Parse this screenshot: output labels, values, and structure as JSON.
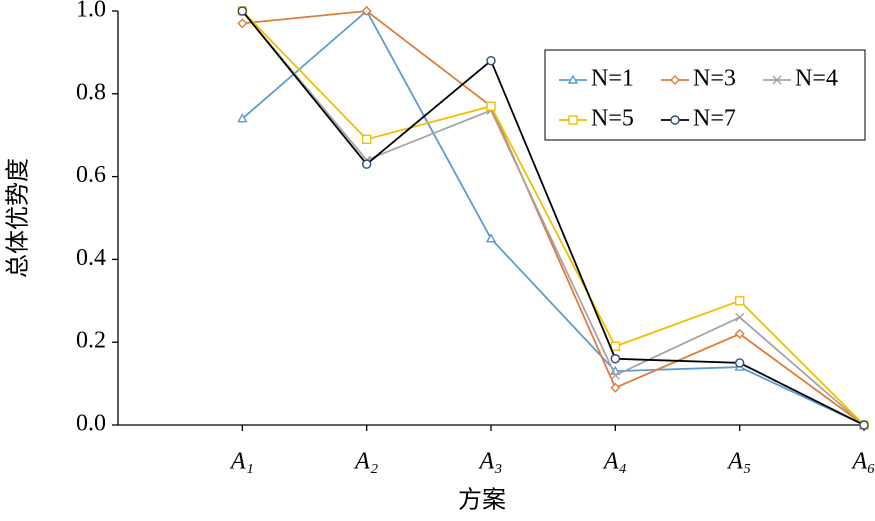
{
  "chart_data": {
    "type": "line",
    "x_label": "方案",
    "y_label": "总体优势度",
    "categories": [
      "A₁",
      "A₂",
      "A₃",
      "A₄",
      "A₅",
      "A₆"
    ],
    "series": [
      {
        "name": "N=1",
        "color": "#5b9bd5",
        "marker": "triangle",
        "values": [
          0.74,
          1.0,
          0.45,
          0.13,
          0.14,
          0.0
        ]
      },
      {
        "name": "N=3",
        "color": "#e07b39",
        "marker": "diamond",
        "values": [
          0.97,
          1.0,
          0.77,
          0.09,
          0.22,
          0.0
        ]
      },
      {
        "name": "N=4",
        "color": "#a5a5a5",
        "marker": "x",
        "values": [
          1.0,
          0.64,
          0.76,
          0.12,
          0.26,
          0.0
        ]
      },
      {
        "name": "N=5",
        "color": "#f0c000",
        "marker": "square",
        "values": [
          1.0,
          0.69,
          0.77,
          0.19,
          0.3,
          0.0
        ]
      },
      {
        "name": "N=7",
        "color": "#000000",
        "marker_color": "#2e4a7a",
        "marker": "circle",
        "values": [
          1.0,
          0.63,
          0.88,
          0.16,
          0.15,
          0.0
        ]
      }
    ],
    "ylim": [
      0,
      1.0
    ],
    "yticks": [
      {
        "value": 0,
        "label": "0.0"
      },
      0.2,
      0.4,
      0.6,
      0.8,
      {
        "value": 1.0,
        "label": "1.0"
      }
    ],
    "grid": false,
    "legend": "upper right"
  }
}
